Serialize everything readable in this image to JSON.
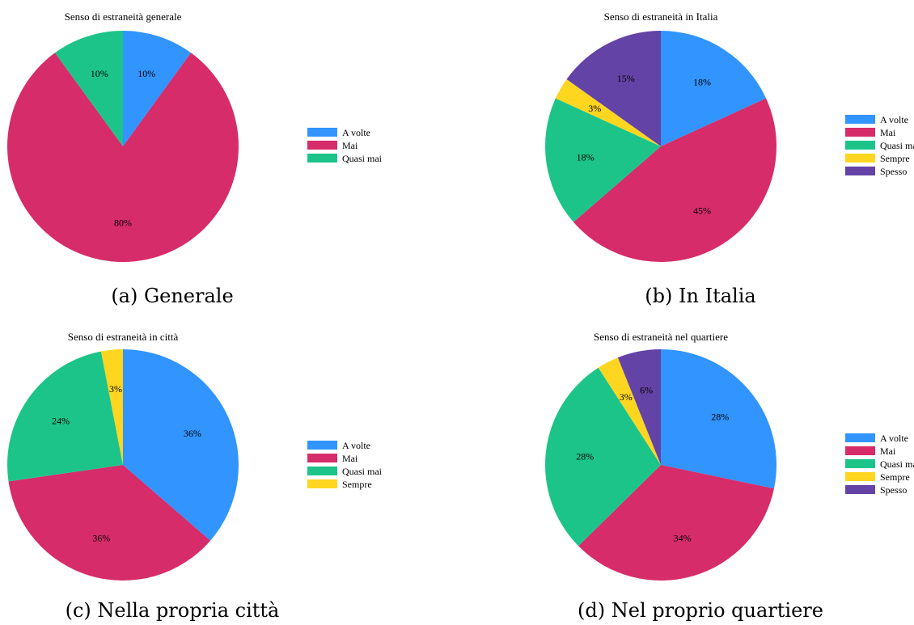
{
  "colors": {
    "A volte": "#3194FF",
    "Mai": "#D62C6A",
    "Quasi mai": "#1CC48A",
    "Sempre": "#FFD61F",
    "Spesso": "#6443A6"
  },
  "chart_data": [
    {
      "type": "pie",
      "title": "Senso di estraneità generale",
      "caption": "(a) Generale",
      "legend": [
        "A volte",
        "Mai",
        "Quasi mai"
      ],
      "slices": [
        {
          "name": "A volte",
          "value": 10,
          "label": "10%"
        },
        {
          "name": "Mai",
          "value": 80,
          "label": "80%"
        },
        {
          "name": "Quasi mai",
          "value": 10,
          "label": "10%"
        }
      ]
    },
    {
      "type": "pie",
      "title": "Senso di estraneità in Italia",
      "caption": "(b) In Italia",
      "legend": [
        "A volte",
        "Mai",
        "Quasi mai",
        "Sempre",
        "Spesso"
      ],
      "slices": [
        {
          "name": "A volte",
          "value": 18,
          "label": "18%"
        },
        {
          "name": "Mai",
          "value": 45,
          "label": "45%"
        },
        {
          "name": "Quasi mai",
          "value": 18,
          "label": "18%"
        },
        {
          "name": "Sempre",
          "value": 3,
          "label": "3%"
        },
        {
          "name": "Spesso",
          "value": 15,
          "label": "15%"
        }
      ]
    },
    {
      "type": "pie",
      "title": "Senso di estraneità in città",
      "caption": "(c) Nella propria città",
      "legend": [
        "A volte",
        "Mai",
        "Quasi mai",
        "Sempre"
      ],
      "slices": [
        {
          "name": "A volte",
          "value": 36,
          "label": "36%"
        },
        {
          "name": "Mai",
          "value": 36,
          "label": "36%"
        },
        {
          "name": "Quasi mai",
          "value": 24,
          "label": "24%"
        },
        {
          "name": "Sempre",
          "value": 3,
          "label": "3%"
        }
      ]
    },
    {
      "type": "pie",
      "title": "Senso di estraneità nel quartiere",
      "caption": "(d) Nel proprio quartiere",
      "legend": [
        "A volte",
        "Mai",
        "Quasi mai",
        "Sempre",
        "Spesso"
      ],
      "slices": [
        {
          "name": "A volte",
          "value": 28,
          "label": "28%"
        },
        {
          "name": "Mai",
          "value": 34,
          "label": "34%"
        },
        {
          "name": "Quasi mai",
          "value": 28,
          "label": "28%"
        },
        {
          "name": "Sempre",
          "value": 3,
          "label": "3%"
        },
        {
          "name": "Spesso",
          "value": 6,
          "label": "6%"
        }
      ]
    }
  ]
}
